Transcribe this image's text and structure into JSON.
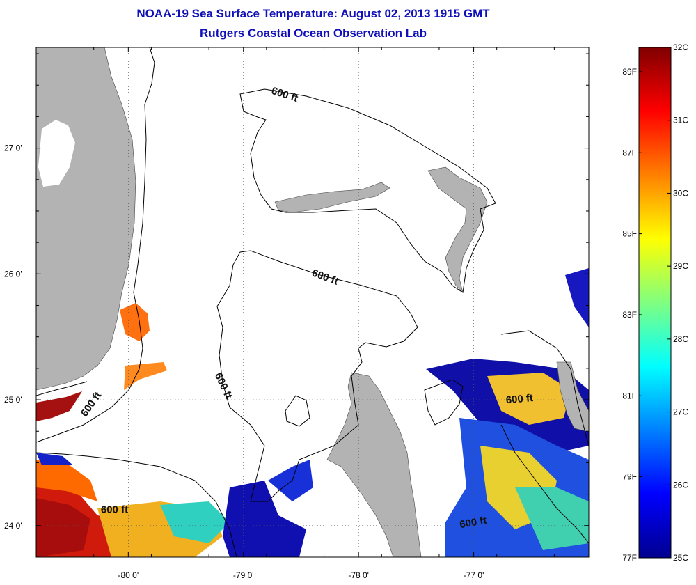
{
  "header": {
    "title": "NOAA-19 Sea Surface Temperature:  August 02, 2013 1915 GMT",
    "subtitle": "Rutgers Coastal Ocean Observation Lab"
  },
  "map": {
    "lon_range": [
      -80.8,
      -76.0
    ],
    "lat_range": [
      23.75,
      27.8
    ],
    "lon_ticks": [
      {
        "value": -80,
        "label": "-80 0'"
      },
      {
        "value": -79,
        "label": "-79 0'"
      },
      {
        "value": -78,
        "label": "-78 0'"
      },
      {
        "value": -77,
        "label": "-77 0'"
      }
    ],
    "lat_ticks": [
      {
        "value": 27,
        "label": "27 0'"
      },
      {
        "value": 26,
        "label": "26 0'"
      },
      {
        "value": 25,
        "label": "25 0'"
      },
      {
        "value": 24,
        "label": "24 0'"
      }
    ],
    "grid": true,
    "contour_labels": [
      {
        "text": "600 ft",
        "lon": -78.65,
        "lat": 27.4
      },
      {
        "text": "600 ft",
        "lon": -78.3,
        "lat": 25.95
      },
      {
        "text": "600 ft",
        "lon": -79.2,
        "lat": 25.1
      },
      {
        "text": "600 ft",
        "lon": -80.3,
        "lat": 24.95
      },
      {
        "text": "600 ft",
        "lon": -80.12,
        "lat": 24.1
      },
      {
        "text": "600 ft",
        "lon": -76.6,
        "lat": 24.98
      },
      {
        "text": "600 ft",
        "lon": -77.0,
        "lat": 24.0
      }
    ],
    "colors": {
      "land": "#b3b3b3",
      "contour": "#000000",
      "grid": "#555555"
    }
  },
  "colorbar": {
    "celsius": [
      {
        "value": 32,
        "label": "32C"
      },
      {
        "value": 31,
        "label": "31C"
      },
      {
        "value": 30,
        "label": "30C"
      },
      {
        "value": 29,
        "label": "29C"
      },
      {
        "value": 28,
        "label": "28C"
      },
      {
        "value": 27,
        "label": "27C"
      },
      {
        "value": 26,
        "label": "26C"
      },
      {
        "value": 25,
        "label": "25C"
      }
    ],
    "fahrenheit": [
      {
        "value": 89,
        "label": "89F"
      },
      {
        "value": 87,
        "label": "87F"
      },
      {
        "value": 85,
        "label": "85F"
      },
      {
        "value": 83,
        "label": "83F"
      },
      {
        "value": 81,
        "label": "81F"
      },
      {
        "value": 79,
        "label": "79F"
      },
      {
        "value": 77,
        "label": "77F"
      }
    ],
    "range_c": [
      25,
      32
    ],
    "stops": [
      "#00008f",
      "#0000ff",
      "#0080ff",
      "#00ffff",
      "#80ff80",
      "#ffff00",
      "#ff8000",
      "#ff0000",
      "#800000"
    ]
  }
}
